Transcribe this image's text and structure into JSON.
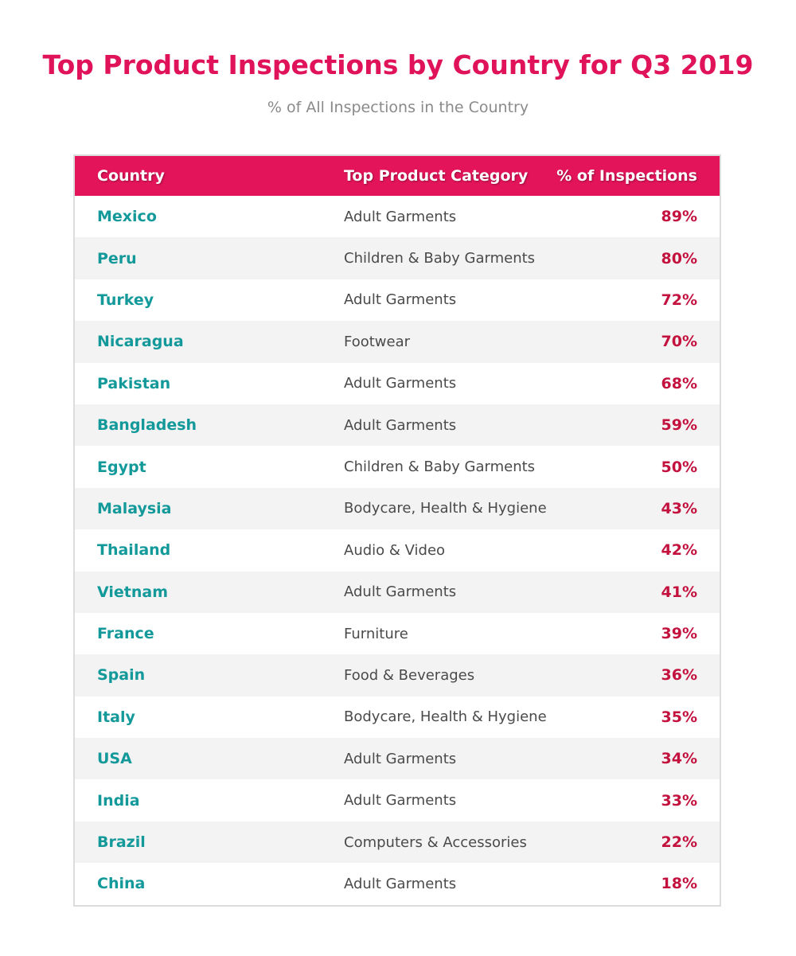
{
  "chart_data": {
    "type": "table",
    "title": "Top Product Inspections by Country for Q3 2019",
    "subtitle": "% of All Inspections in the Country",
    "columns": [
      "Country",
      "Top Product Category",
      "% of Inspections"
    ],
    "rows": [
      {
        "country": "Mexico",
        "category": "Adult Garments",
        "pct": "89%"
      },
      {
        "country": "Peru",
        "category": "Children & Baby Garments",
        "pct": "80%"
      },
      {
        "country": "Turkey",
        "category": "Adult Garments",
        "pct": "72%"
      },
      {
        "country": "Nicaragua",
        "category": "Footwear",
        "pct": "70%"
      },
      {
        "country": "Pakistan",
        "category": "Adult Garments",
        "pct": "68%"
      },
      {
        "country": "Bangladesh",
        "category": "Adult Garments",
        "pct": "59%"
      },
      {
        "country": "Egypt",
        "category": "Children & Baby Garments",
        "pct": "50%"
      },
      {
        "country": "Malaysia",
        "category": "Bodycare, Health & Hygiene",
        "pct": "43%"
      },
      {
        "country": "Thailand",
        "category": "Audio & Video",
        "pct": "42%"
      },
      {
        "country": "Vietnam",
        "category": "Adult Garments",
        "pct": "41%"
      },
      {
        "country": "France",
        "category": "Furniture",
        "pct": "39%"
      },
      {
        "country": "Spain",
        "category": "Food & Beverages",
        "pct": "36%"
      },
      {
        "country": "Italy",
        "category": "Bodycare, Health & Hygiene",
        "pct": "35%"
      },
      {
        "country": "USA",
        "category": "Adult Garments",
        "pct": "34%"
      },
      {
        "country": "India",
        "category": "Adult Garments",
        "pct": "33%"
      },
      {
        "country": "Brazil",
        "category": "Computers & Accessories",
        "pct": "22%"
      },
      {
        "country": "China",
        "category": "Adult Garments",
        "pct": "18%"
      }
    ]
  },
  "colors": {
    "title": "#e0135a",
    "header_bg": "#e4145a",
    "country_text": "#13999a",
    "percent_text": "#c4123f",
    "stripe": "#f3f3f3"
  }
}
